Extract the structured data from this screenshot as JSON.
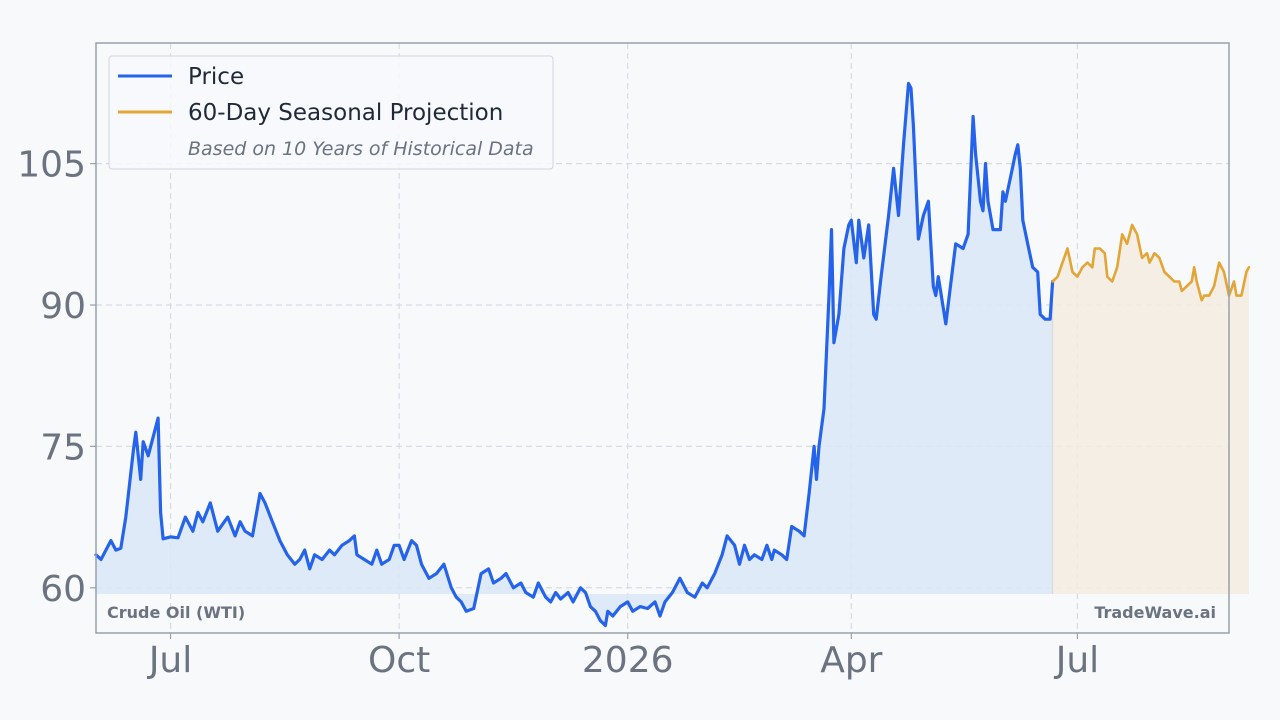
{
  "chart_data": {
    "type": "line",
    "title": "",
    "xlabel": "",
    "ylabel": "",
    "ylim": [
      55.2,
      117.8
    ],
    "xlim": [
      "2025-06-01",
      "2026-08-31"
    ],
    "y_ticks": [
      60,
      75,
      90,
      105
    ],
    "x_ticks": [
      {
        "label": "Jul",
        "date": "2025-07-01"
      },
      {
        "label": "Oct",
        "date": "2025-10-01"
      },
      {
        "label": "2026",
        "date": "2026-01-01"
      },
      {
        "label": "Apr",
        "date": "2026-04-01"
      },
      {
        "label": "Jul",
        "date": "2026-07-01"
      }
    ],
    "grid": true,
    "legend_position": "top-left",
    "legend": {
      "price": "Price",
      "projection": "60-Day Seasonal Projection",
      "note": "Based on 10 Years of Historical Data"
    },
    "corner_labels": {
      "instrument": "Crude Oil (WTI)",
      "brand": "TradeWave.ai"
    },
    "colors": {
      "price": "#2563eb",
      "projection": "#e3a535",
      "price_fill": "#dbe8f7",
      "projection_fill": "#f3ecdf"
    },
    "series": [
      {
        "name": "Price",
        "points": [
          [
            "2025-06-01",
            63.5
          ],
          [
            "2025-06-03",
            63.0
          ],
          [
            "2025-06-07",
            65.0
          ],
          [
            "2025-06-09",
            64.0
          ],
          [
            "2025-06-11",
            64.2
          ],
          [
            "2025-06-13",
            67.5
          ],
          [
            "2025-06-16",
            74.5
          ],
          [
            "2025-06-17",
            76.5
          ],
          [
            "2025-06-19",
            71.5
          ],
          [
            "2025-06-20",
            75.5
          ],
          [
            "2025-06-22",
            74.0
          ],
          [
            "2025-06-26",
            78.0
          ],
          [
            "2025-06-27",
            68.0
          ],
          [
            "2025-06-28",
            65.2
          ],
          [
            "2025-07-01",
            65.4
          ],
          [
            "2025-07-04",
            65.3
          ],
          [
            "2025-07-07",
            67.5
          ],
          [
            "2025-07-10",
            66.0
          ],
          [
            "2025-07-12",
            68.0
          ],
          [
            "2025-07-14",
            67.0
          ],
          [
            "2025-07-17",
            69.0
          ],
          [
            "2025-07-20",
            66.0
          ],
          [
            "2025-07-24",
            67.5
          ],
          [
            "2025-07-27",
            65.5
          ],
          [
            "2025-07-29",
            67.0
          ],
          [
            "2025-07-31",
            66.0
          ],
          [
            "2025-08-03",
            65.5
          ],
          [
            "2025-08-06",
            70.0
          ],
          [
            "2025-08-08",
            69.0
          ],
          [
            "2025-08-11",
            67.0
          ],
          [
            "2025-08-14",
            65.0
          ],
          [
            "2025-08-17",
            63.5
          ],
          [
            "2025-08-20",
            62.5
          ],
          [
            "2025-08-22",
            63.0
          ],
          [
            "2025-08-24",
            64.0
          ],
          [
            "2025-08-26",
            62.0
          ],
          [
            "2025-08-28",
            63.5
          ],
          [
            "2025-08-31",
            63.0
          ],
          [
            "2025-09-03",
            64.0
          ],
          [
            "2025-09-05",
            63.5
          ],
          [
            "2025-09-08",
            64.5
          ],
          [
            "2025-09-11",
            65.0
          ],
          [
            "2025-09-13",
            65.5
          ],
          [
            "2025-09-14",
            63.5
          ],
          [
            "2025-09-17",
            63.0
          ],
          [
            "2025-09-20",
            62.5
          ],
          [
            "2025-09-22",
            64.0
          ],
          [
            "2025-09-24",
            62.5
          ],
          [
            "2025-09-27",
            63.0
          ],
          [
            "2025-09-29",
            64.5
          ],
          [
            "2025-10-01",
            64.5
          ],
          [
            "2025-10-03",
            63.0
          ],
          [
            "2025-10-06",
            65.0
          ],
          [
            "2025-10-08",
            64.5
          ],
          [
            "2025-10-10",
            62.5
          ],
          [
            "2025-10-13",
            61.0
          ],
          [
            "2025-10-16",
            61.5
          ],
          [
            "2025-10-19",
            62.5
          ],
          [
            "2025-10-22",
            60.0
          ],
          [
            "2025-10-24",
            59.0
          ],
          [
            "2025-10-26",
            58.5
          ],
          [
            "2025-10-28",
            57.5
          ],
          [
            "2025-10-31",
            57.8
          ],
          [
            "2025-11-03",
            61.5
          ],
          [
            "2025-11-06",
            62.0
          ],
          [
            "2025-11-08",
            60.5
          ],
          [
            "2025-11-11",
            61.0
          ],
          [
            "2025-11-13",
            61.5
          ],
          [
            "2025-11-16",
            60.0
          ],
          [
            "2025-11-19",
            60.5
          ],
          [
            "2025-11-21",
            59.5
          ],
          [
            "2025-11-24",
            59.0
          ],
          [
            "2025-11-26",
            60.5
          ],
          [
            "2025-11-29",
            59.0
          ],
          [
            "2025-12-01",
            58.5
          ],
          [
            "2025-12-03",
            59.5
          ],
          [
            "2025-12-05",
            58.8
          ],
          [
            "2025-12-08",
            59.5
          ],
          [
            "2025-12-10",
            58.5
          ],
          [
            "2025-12-13",
            60.0
          ],
          [
            "2025-12-15",
            59.5
          ],
          [
            "2025-12-17",
            58.0
          ],
          [
            "2025-12-19",
            57.5
          ],
          [
            "2025-12-21",
            56.5
          ],
          [
            "2025-12-23",
            56.0
          ],
          [
            "2025-12-24",
            57.5
          ],
          [
            "2025-12-26",
            57.0
          ],
          [
            "2025-12-29",
            58.0
          ],
          [
            "2026-01-01",
            58.5
          ],
          [
            "2026-01-03",
            57.5
          ],
          [
            "2026-01-06",
            58.0
          ],
          [
            "2026-01-09",
            57.8
          ],
          [
            "2026-01-12",
            58.5
          ],
          [
            "2026-01-14",
            57.0
          ],
          [
            "2026-01-16",
            58.5
          ],
          [
            "2026-01-19",
            59.5
          ],
          [
            "2026-01-22",
            61.0
          ],
          [
            "2026-01-25",
            59.5
          ],
          [
            "2026-01-28",
            59.0
          ],
          [
            "2026-01-31",
            60.5
          ],
          [
            "2026-02-02",
            60.0
          ],
          [
            "2026-02-05",
            61.5
          ],
          [
            "2026-02-08",
            63.5
          ],
          [
            "2026-02-10",
            65.5
          ],
          [
            "2026-02-13",
            64.5
          ],
          [
            "2026-02-15",
            62.5
          ],
          [
            "2026-02-17",
            64.5
          ],
          [
            "2026-02-19",
            63.0
          ],
          [
            "2026-02-21",
            63.5
          ],
          [
            "2026-02-24",
            63.0
          ],
          [
            "2026-02-26",
            64.5
          ],
          [
            "2026-02-28",
            63.0
          ],
          [
            "2026-03-01",
            64.0
          ],
          [
            "2026-03-04",
            63.5
          ],
          [
            "2026-03-06",
            63.0
          ],
          [
            "2026-03-08",
            66.5
          ],
          [
            "2026-03-11",
            66.0
          ],
          [
            "2026-03-13",
            65.5
          ],
          [
            "2026-03-15",
            70.0
          ],
          [
            "2026-03-17",
            75.0
          ],
          [
            "2026-03-18",
            71.5
          ],
          [
            "2026-03-19",
            75.0
          ],
          [
            "2026-03-21",
            79.0
          ],
          [
            "2026-03-23",
            91.0
          ],
          [
            "2026-03-24",
            98.0
          ],
          [
            "2026-03-25",
            86.0
          ],
          [
            "2026-03-27",
            89.0
          ],
          [
            "2026-03-29",
            96.0
          ],
          [
            "2026-03-31",
            98.5
          ],
          [
            "2026-04-01",
            99.0
          ],
          [
            "2026-04-03",
            94.5
          ],
          [
            "2026-04-04",
            99.0
          ],
          [
            "2026-04-06",
            95.0
          ],
          [
            "2026-04-08",
            98.5
          ],
          [
            "2026-04-10",
            89.0
          ],
          [
            "2026-04-11",
            88.5
          ],
          [
            "2026-04-13",
            93.0
          ],
          [
            "2026-04-16",
            99.5
          ],
          [
            "2026-04-18",
            104.5
          ],
          [
            "2026-04-20",
            99.5
          ],
          [
            "2026-04-22",
            107.0
          ],
          [
            "2026-04-24",
            113.5
          ],
          [
            "2026-04-25",
            113.0
          ],
          [
            "2026-04-26",
            109.0
          ],
          [
            "2026-04-28",
            97.0
          ],
          [
            "2026-04-30",
            99.5
          ],
          [
            "2026-05-02",
            101.0
          ],
          [
            "2026-05-04",
            92.0
          ],
          [
            "2026-05-05",
            91.0
          ],
          [
            "2026-05-06",
            93.0
          ],
          [
            "2026-05-09",
            88.0
          ],
          [
            "2026-05-13",
            96.5
          ],
          [
            "2026-05-16",
            96.0
          ],
          [
            "2026-05-18",
            97.5
          ],
          [
            "2026-05-20",
            110.0
          ],
          [
            "2026-05-21",
            106.0
          ],
          [
            "2026-05-23",
            101.0
          ],
          [
            "2026-05-24",
            100.0
          ],
          [
            "2026-05-25",
            105.0
          ],
          [
            "2026-05-26",
            101.0
          ],
          [
            "2026-05-28",
            98.0
          ],
          [
            "2026-05-31",
            98.0
          ],
          [
            "2026-06-01",
            102.0
          ],
          [
            "2026-06-02",
            101.0
          ],
          [
            "2026-06-04",
            103.5
          ],
          [
            "2026-06-06",
            106.0
          ],
          [
            "2026-06-07",
            107.0
          ],
          [
            "2026-06-08",
            104.5
          ],
          [
            "2026-06-09",
            99.0
          ],
          [
            "2026-06-11",
            96.5
          ],
          [
            "2026-06-13",
            94.0
          ],
          [
            "2026-06-15",
            93.5
          ],
          [
            "2026-06-16",
            89.0
          ],
          [
            "2026-06-18",
            88.5
          ],
          [
            "2026-06-20",
            88.5
          ],
          [
            "2026-06-21",
            92.5
          ]
        ]
      },
      {
        "name": "60-Day Seasonal Projection",
        "points": [
          [
            "2026-06-21",
            92.5
          ],
          [
            "2026-06-23",
            93.0
          ],
          [
            "2026-06-25",
            94.5
          ],
          [
            "2026-06-27",
            96.0
          ],
          [
            "2026-06-29",
            93.5
          ],
          [
            "2026-07-01",
            93.0
          ],
          [
            "2026-07-03",
            94.0
          ],
          [
            "2026-07-05",
            94.5
          ],
          [
            "2026-07-07",
            94.0
          ],
          [
            "2026-07-08",
            96.0
          ],
          [
            "2026-07-10",
            96.0
          ],
          [
            "2026-07-12",
            95.5
          ],
          [
            "2026-07-13",
            93.0
          ],
          [
            "2026-07-15",
            92.5
          ],
          [
            "2026-07-17",
            94.0
          ],
          [
            "2026-07-19",
            97.5
          ],
          [
            "2026-07-21",
            96.5
          ],
          [
            "2026-07-23",
            98.5
          ],
          [
            "2026-07-25",
            97.5
          ],
          [
            "2026-07-27",
            95.0
          ],
          [
            "2026-07-29",
            95.5
          ],
          [
            "2026-07-30",
            94.5
          ],
          [
            "2026-08-01",
            95.5
          ],
          [
            "2026-08-03",
            95.0
          ],
          [
            "2026-08-05",
            93.5
          ],
          [
            "2026-08-07",
            93.0
          ],
          [
            "2026-08-09",
            92.5
          ],
          [
            "2026-08-11",
            92.5
          ],
          [
            "2026-08-12",
            91.5
          ],
          [
            "2026-08-14",
            92.0
          ],
          [
            "2026-08-16",
            92.5
          ],
          [
            "2026-08-17",
            94.0
          ],
          [
            "2026-08-18",
            92.5
          ],
          [
            "2026-08-20",
            90.5
          ],
          [
            "2026-08-21",
            91.0
          ],
          [
            "2026-08-23",
            91.0
          ],
          [
            "2026-08-25",
            92.0
          ],
          [
            "2026-08-27",
            94.5
          ],
          [
            "2026-08-29",
            93.5
          ],
          [
            "2026-08-31",
            91.0
          ],
          [
            "2026-09-02",
            92.5
          ],
          [
            "2026-09-03",
            91.0
          ],
          [
            "2026-09-05",
            91.0
          ],
          [
            "2026-09-07",
            93.5
          ],
          [
            "2026-09-08",
            94.0
          ]
        ]
      }
    ]
  }
}
